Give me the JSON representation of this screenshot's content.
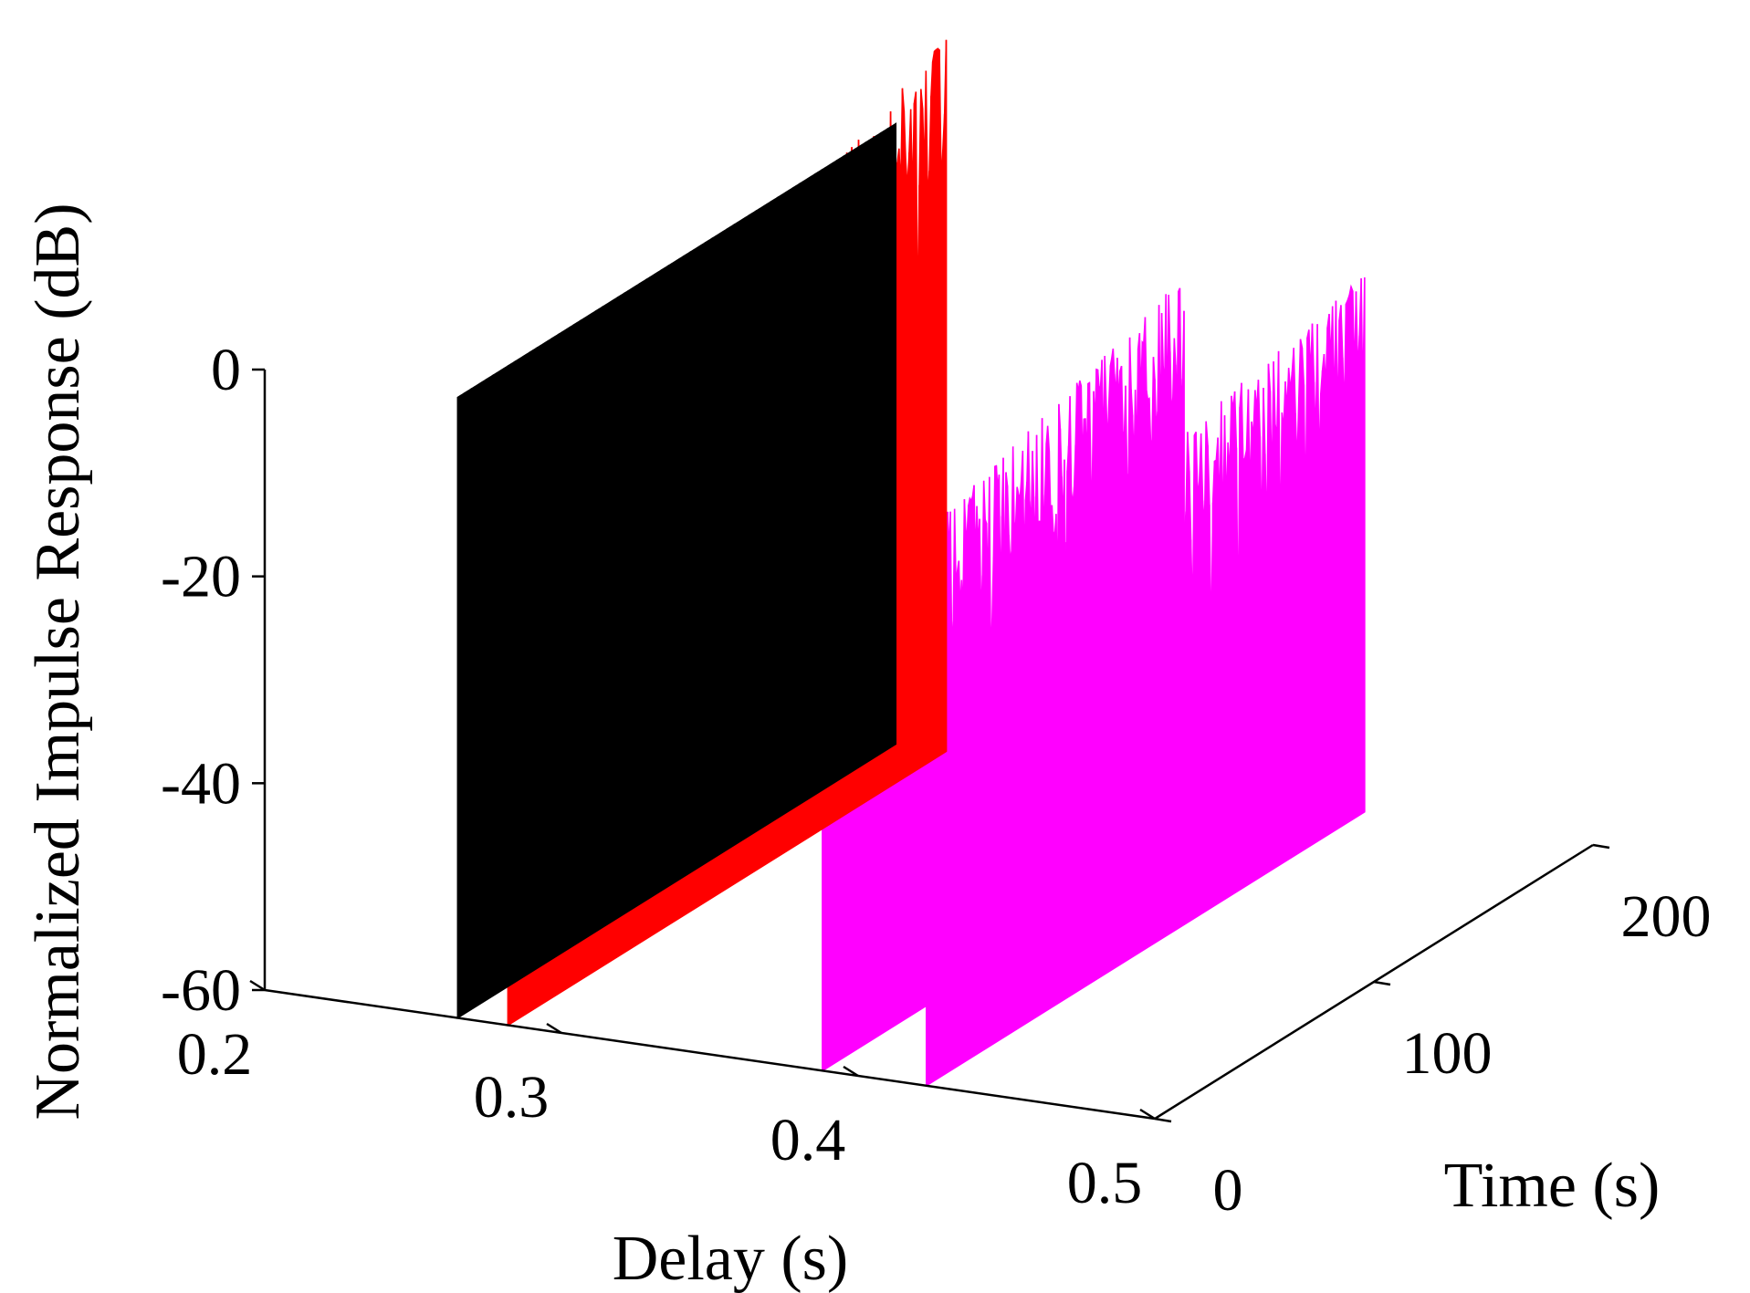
{
  "chart_data": {
    "type": "3d-stem",
    "title": "",
    "xlabel": "Delay (s)",
    "ylabel": "Time (s)",
    "zlabel": "Normalized Impulse Response (dB)",
    "xlim": [
      0.2,
      0.5
    ],
    "ylim": [
      0,
      200
    ],
    "zlim": [
      -60,
      0
    ],
    "x_ticks": [
      "0.2",
      "0.3",
      "0.4",
      "0.5"
    ],
    "y_ticks": [
      "0",
      "100",
      "200"
    ],
    "z_ticks": [
      "0",
      "-20",
      "-40",
      "-60"
    ],
    "series": [
      {
        "delay": 0.265,
        "color": "#000000",
        "time_range": [
          0,
          200
        ],
        "level_db": [
          0,
          0
        ],
        "jitter_db": 0
      },
      {
        "delay": 0.282,
        "color": "#ff0000",
        "time_range": [
          0,
          200
        ],
        "level_db": [
          -13,
          9
        ],
        "jitter_db": 14
      },
      {
        "delay": 0.388,
        "color": "#ff00ff",
        "time_range": [
          0,
          165
        ],
        "level_db": [
          -18,
          -5
        ],
        "jitter_db": 14
      },
      {
        "delay": 0.423,
        "color": "#ff00ff",
        "time_range": [
          0,
          200
        ],
        "level_db": [
          -19,
          -8
        ],
        "jitter_db": 13
      }
    ]
  }
}
